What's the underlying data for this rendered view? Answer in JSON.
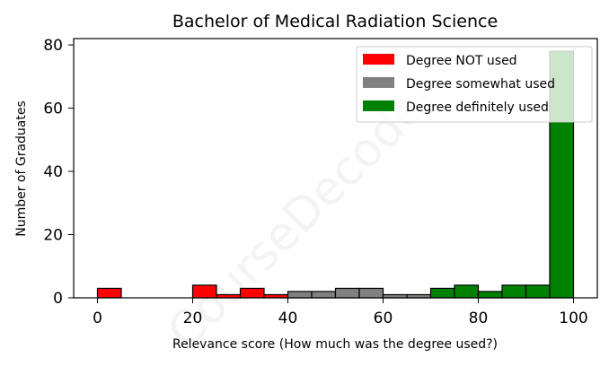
{
  "watermark": "CourseDecoder",
  "chart_data": {
    "type": "histogram",
    "title": "Bachelor of Medical Radiation Science",
    "xlabel": "Relevance score (How much was the degree used?)",
    "ylabel": "Number of Graduates",
    "xlim": [
      -5,
      105
    ],
    "ylim": [
      0,
      82
    ],
    "xticks": [
      0,
      20,
      40,
      60,
      80,
      100
    ],
    "yticks": [
      0,
      20,
      40,
      60,
      80
    ],
    "grid": false,
    "legend_position": "top-right",
    "bin_width": 5,
    "series": [
      {
        "name": "Degree NOT used",
        "color": "#ff0000",
        "bins": [
          {
            "x": 0,
            "value": 3
          },
          {
            "x": 5,
            "value": 0
          },
          {
            "x": 10,
            "value": 0
          },
          {
            "x": 15,
            "value": 0
          },
          {
            "x": 20,
            "value": 4
          },
          {
            "x": 25,
            "value": 1
          },
          {
            "x": 30,
            "value": 3
          },
          {
            "x": 35,
            "value": 1
          }
        ]
      },
      {
        "name": "Degree somewhat used",
        "color": "#808080",
        "bins": [
          {
            "x": 40,
            "value": 2
          },
          {
            "x": 45,
            "value": 2
          },
          {
            "x": 50,
            "value": 3
          },
          {
            "x": 55,
            "value": 3
          },
          {
            "x": 60,
            "value": 1
          },
          {
            "x": 65,
            "value": 1
          }
        ]
      },
      {
        "name": "Degree definitely used",
        "color": "#008000",
        "bins": [
          {
            "x": 70,
            "value": 3
          },
          {
            "x": 75,
            "value": 4
          },
          {
            "x": 80,
            "value": 2
          },
          {
            "x": 85,
            "value": 4
          },
          {
            "x": 90,
            "value": 4
          },
          {
            "x": 95,
            "value": 78
          }
        ]
      }
    ]
  }
}
